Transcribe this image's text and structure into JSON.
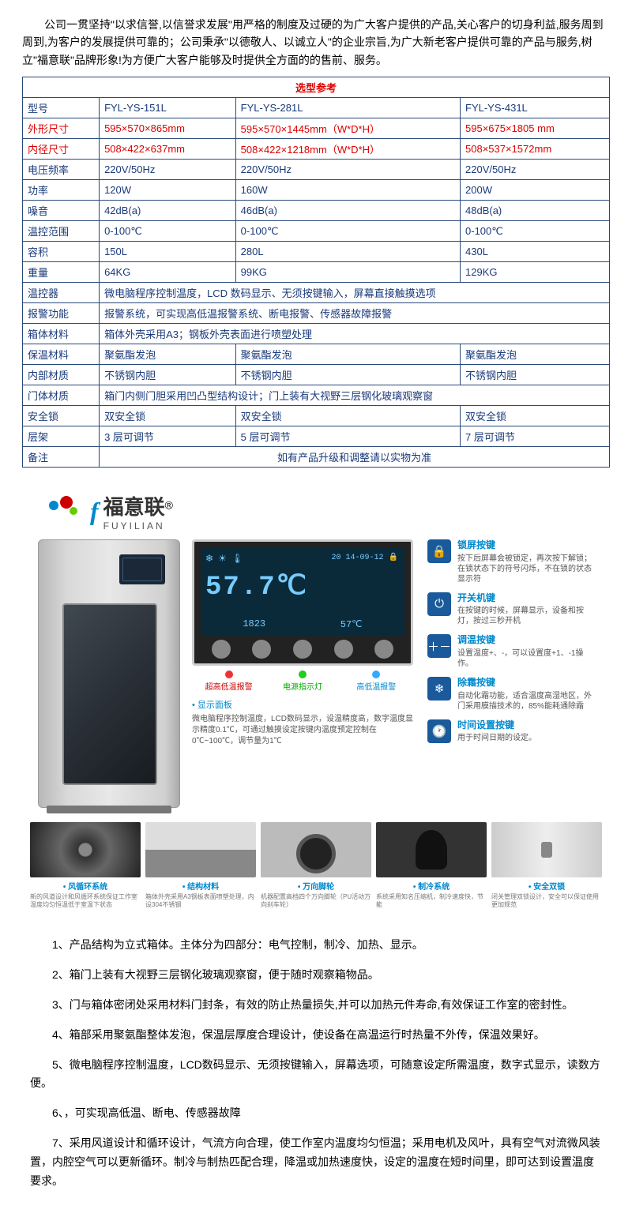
{
  "intro": "公司一贯坚持\"以求信誉,以信誉求发展\"用严格的制度及过硬的为广大客户提供的产品,关心客户的切身利益,服务周到周到,为客户的发展提供可靠的；公司秉承\"以德敬人、以诚立人\"的企业宗旨,为广大新老客户提供可靠的产品与服务,树立\"福意联\"品牌形象!为方便广大客户能够及时提供全方面的的售前、服务。",
  "table": {
    "title": "选型参考",
    "rows": [
      {
        "label": "型号",
        "cls": "blue",
        "c1": "FYL-YS-151L",
        "c2": "FYL-YS-281L",
        "c3": "FYL-YS-431L"
      },
      {
        "label": "外形尺寸",
        "cls": "red",
        "c1": "595×570×865mm",
        "c2": "595×570×1445mm（W*D*H）",
        "c3": "595×675×1805 mm"
      },
      {
        "label": "内径尺寸",
        "cls": "red",
        "c1": "508×422×637mm",
        "c2": "508×422×1218mm（W*D*H）",
        "c3": "508×537×1572mm"
      },
      {
        "label": "电压频率",
        "cls": "blue",
        "c1": "220V/50Hz",
        "c2": "220V/50Hz",
        "c3": "220V/50Hz"
      },
      {
        "label": "功率",
        "cls": "blue",
        "c1": "120W",
        "c2": "160W",
        "c3": "200W"
      },
      {
        "label": "噪音",
        "cls": "blue",
        "c1": "42dB(a)",
        "c2": "46dB(a)",
        "c3": "48dB(a)"
      },
      {
        "label": "温控范围",
        "cls": "blue",
        "c1": "0-100℃",
        "c2": "0-100℃",
        "c3": "0-100℃"
      },
      {
        "label": "容积",
        "cls": "blue",
        "c1": "150L",
        "c2": "280L",
        "c3": "430L"
      },
      {
        "label": "重量",
        "cls": "blue",
        "c1": "64KG",
        "c2": "99KG",
        "c3": "129KG"
      }
    ],
    "merged": [
      {
        "label": "温控器",
        "text": "微电脑程序控制温度，LCD 数码显示、无须按键输入，屏幕直接触摸选项"
      },
      {
        "label": "报警功能",
        "text": "报警系统，可实现高低温报警系统、断电报警、传感器故障报警"
      },
      {
        "label": "箱体材料",
        "text": "箱体外壳采用A3；钢板外壳表面进行喷塑处理"
      }
    ],
    "rows2": [
      {
        "label": "保温材料",
        "c1": "聚氨酯发泡",
        "c2": "聚氨酯发泡",
        "c3": "聚氨酯发泡"
      },
      {
        "label": "内部材质",
        "c1": "不锈钢内胆",
        "c2": "不锈钢内胆",
        "c3": "不锈钢内胆"
      }
    ],
    "merged2": [
      {
        "label": "门体材质",
        "text": "箱门内侧门胆采用凹凸型结构设计；门上装有大视野三层钢化玻璃观察窗"
      }
    ],
    "rows3": [
      {
        "label": "安全锁",
        "c1": "双安全锁",
        "c2": "双安全锁",
        "c3": "双安全锁"
      },
      {
        "label": "层架",
        "c1": "3 层可调节",
        "c2": "5 层可调节",
        "c3": "7 层可调节"
      }
    ],
    "note": {
      "label": "备注",
      "text": "如有产品升级和调整请以实物为准"
    }
  },
  "brand": {
    "cn": "福意联",
    "en": "FUYILIAN",
    "reg": "®"
  },
  "lcd": {
    "date": "20 14-09-12",
    "temp": "57.7℃",
    "time": "1823",
    "alt": "57℃"
  },
  "alarms": {
    "red": "超高低温报警",
    "green": "电源指示灯",
    "blue": "高低温报警"
  },
  "panelDesc": {
    "title": "• 显示面板",
    "text": "微电脑程序控制温度，LCD数码显示，设温精度高，数字温度显示精度0.1℃，可通过触摸设定按键内温度预定控制在0℃~100℃，调节量为1℃"
  },
  "buttons": [
    {
      "icon": "🔒",
      "title": "锁屏按键",
      "desc": "按下后屏幕会被锁定，再次按下解锁；在锁状态下的符号闪烁，不在锁的状态显示符"
    },
    {
      "icon": "⏻",
      "title": "开关机键",
      "desc": "在按键的时候，屏幕显示，设备和按灯，按过三秒开机"
    },
    {
      "icon": "＋－",
      "title": "调温按键",
      "desc": "设置温度+、-，可以设置度+1、-1操作。"
    },
    {
      "icon": "❄",
      "title": "除霜按键",
      "desc": "自动化霜功能，适合温度高湿地区，外门采用膜描技术的，85%能耗通除霜"
    },
    {
      "icon": "🕐",
      "title": "时间设置按键",
      "desc": "用于时间日期的设定。"
    }
  ],
  "thumbs": [
    {
      "label": "• 风循环系统",
      "desc": "新的风道设计和风循环系统保证工作室温度均匀恒温低于室温下状态",
      "cls": "thumb-fan"
    },
    {
      "label": "• 结构材料",
      "desc": "箱体外壳采用A3钢板表面喷塑处理，内设304不锈钢",
      "cls": "thumb-struct"
    },
    {
      "label": "• 万向脚轮",
      "desc": "机器配置高档四个万向脚轮（PU活动万向刹车轮）",
      "cls": "thumb-wheel"
    },
    {
      "label": "• 制冷系统",
      "desc": "系统采用知名压缩机，制冷速度快，节能",
      "cls": "thumb-comp"
    },
    {
      "label": "• 安全双锁",
      "desc": "闭关管理双锁设计，安全可以保证使用更加规范",
      "cls": "thumb-lock"
    }
  ],
  "features": [
    "1、产品结构为立式箱体。主体分为四部分：电气控制，制冷、加热、显示。",
    "2、箱门上装有大视野三层钢化玻璃观察窗，便于随时观察箱物品。",
    "3、门与箱体密闭处采用材料门封条，有效的防止热量损失,并可以加热元件寿命,有效保证工作室的密封性。",
    "4、箱部采用聚氨酯整体发泡，保温层厚度合理设计，使设备在高温运行时热量不外传，保温效果好。",
    "5、微电脑程序控制温度，LCD数码显示、无须按键输入，屏幕选项，可随意设定所需温度，数字式显示，读数方便。",
    "6、，可实现高低温、断电、传感器故障",
    "7、采用风道设计和循环设计，气流方向合理，使工作室内温度均匀恒温；采用电机及风叶，具有空气对流微风装置，内腔空气可以更新循环。制冷与制热匹配合理，降温或加热速度快，设定的温度在短时间里，即可达到设置温度要求。"
  ]
}
